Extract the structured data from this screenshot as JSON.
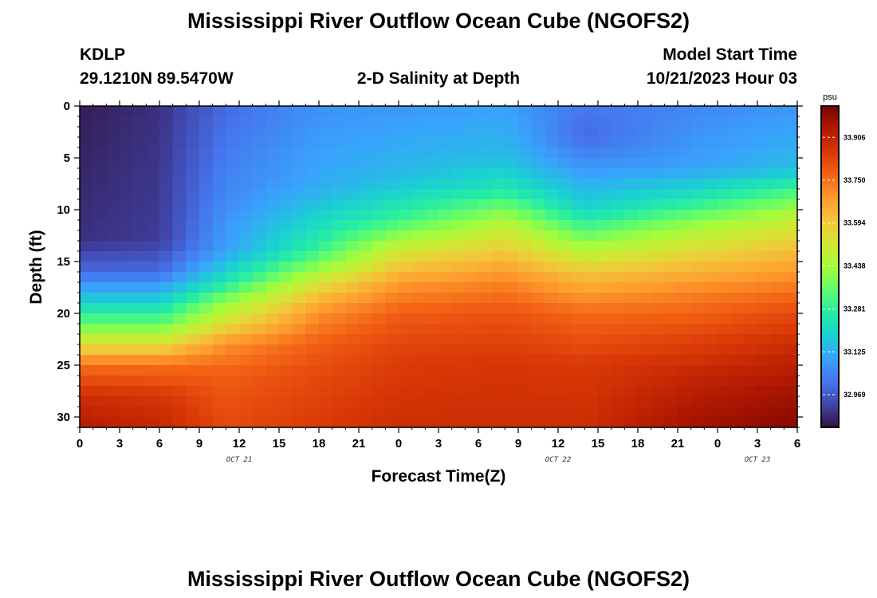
{
  "header": {
    "title": "Mississippi River Outflow Ocean Cube (NGOFS2)",
    "station": "KDLP",
    "coords": "29.1210N  89.5470W",
    "subtitle": "2-D Salinity at Depth",
    "model_start_label": "Model Start Time",
    "model_start_value": "10/21/2023 Hour 03"
  },
  "footer": {
    "title": "Mississippi River Outflow Ocean Cube (NGOFS2)"
  },
  "chart_data": {
    "type": "heatmap",
    "title": "2-D Salinity at Depth",
    "xlabel": "Forecast Time(Z)",
    "ylabel": "Depth (ft)",
    "x_hours_from_start": [
      0,
      54
    ],
    "x_tick_labels": [
      "0",
      "3",
      "6",
      "9",
      "12",
      "15",
      "18",
      "21",
      "0",
      "3",
      "6",
      "9",
      "12",
      "15",
      "18",
      "21",
      "0",
      "3",
      "6"
    ],
    "date_labels": [
      {
        "text": "OCT 21",
        "at_hour": 12
      },
      {
        "text": "OCT 22",
        "at_hour": 36
      },
      {
        "text": "OCT 23",
        "at_hour": 51
      }
    ],
    "ylim": [
      0,
      31
    ],
    "y_ticks": [
      0,
      5,
      10,
      15,
      20,
      25,
      30
    ],
    "y_reversed": true,
    "colorbar": {
      "unit": "psu",
      "range": [
        32.85,
        34.02
      ],
      "ticks": [
        "33.906",
        "33.750",
        "33.594",
        "33.438",
        "33.281",
        "33.125",
        "32.969"
      ],
      "colors": [
        "#30123b",
        "#4145ab",
        "#4675ed",
        "#39a2fc",
        "#1bcfd4",
        "#24eca6",
        "#61fc6c",
        "#a4fc3b",
        "#d1e834",
        "#f3c63a",
        "#fe9b2d",
        "#f36315",
        "#d93806",
        "#b11901",
        "#7a0402"
      ]
    },
    "salinity_profiles": [
      {
        "hour": 0,
        "depth_ft": [
          0,
          13,
          16,
          19,
          21,
          23,
          25,
          28,
          31
        ],
        "psu": [
          32.87,
          32.9,
          33.0,
          33.2,
          33.35,
          33.55,
          33.75,
          33.88,
          33.93
        ]
      },
      {
        "hour": 6,
        "depth_ft": [
          0,
          13,
          16,
          19,
          21,
          23,
          25,
          28,
          31
        ],
        "psu": [
          32.9,
          32.92,
          33.0,
          33.2,
          33.35,
          33.55,
          33.75,
          33.86,
          33.9
        ]
      },
      {
        "hour": 11,
        "depth_ft": [
          0,
          8,
          14,
          17,
          19,
          21,
          23,
          26,
          31
        ],
        "psu": [
          33.0,
          33.05,
          33.1,
          33.25,
          33.42,
          33.55,
          33.7,
          33.78,
          33.82
        ]
      },
      {
        "hour": 18,
        "depth_ft": [
          0,
          8,
          14,
          16,
          18,
          20,
          23,
          26,
          31
        ],
        "psu": [
          33.07,
          33.12,
          33.3,
          33.45,
          33.6,
          33.7,
          33.78,
          33.82,
          33.85
        ]
      },
      {
        "hour": 24,
        "depth_ft": [
          0,
          7,
          11,
          14,
          17,
          20,
          24,
          31
        ],
        "psu": [
          33.08,
          33.15,
          33.3,
          33.52,
          33.68,
          33.78,
          33.84,
          33.88
        ]
      },
      {
        "hour": 32,
        "depth_ft": [
          0,
          5,
          8,
          11,
          14,
          17,
          20,
          25,
          31
        ],
        "psu": [
          33.1,
          33.15,
          33.25,
          33.45,
          33.6,
          33.72,
          33.8,
          33.86,
          33.88
        ]
      },
      {
        "hour": 38,
        "depth_ft": [
          0,
          3,
          6,
          10,
          13,
          16,
          20,
          25,
          31
        ],
        "psu": [
          33.02,
          33.0,
          33.08,
          33.2,
          33.4,
          33.6,
          33.76,
          33.85,
          33.88
        ]
      },
      {
        "hour": 46,
        "depth_ft": [
          0,
          6,
          9,
          12,
          15,
          18,
          22,
          26,
          31
        ],
        "psu": [
          33.05,
          33.1,
          33.25,
          33.45,
          33.6,
          33.72,
          33.82,
          33.9,
          33.96
        ]
      },
      {
        "hour": 54,
        "depth_ft": [
          0,
          6,
          8,
          11,
          14,
          17,
          20,
          24,
          27,
          31
        ],
        "psu": [
          33.08,
          33.15,
          33.3,
          33.5,
          33.62,
          33.72,
          33.82,
          33.9,
          33.95,
          34.0
        ]
      }
    ]
  }
}
